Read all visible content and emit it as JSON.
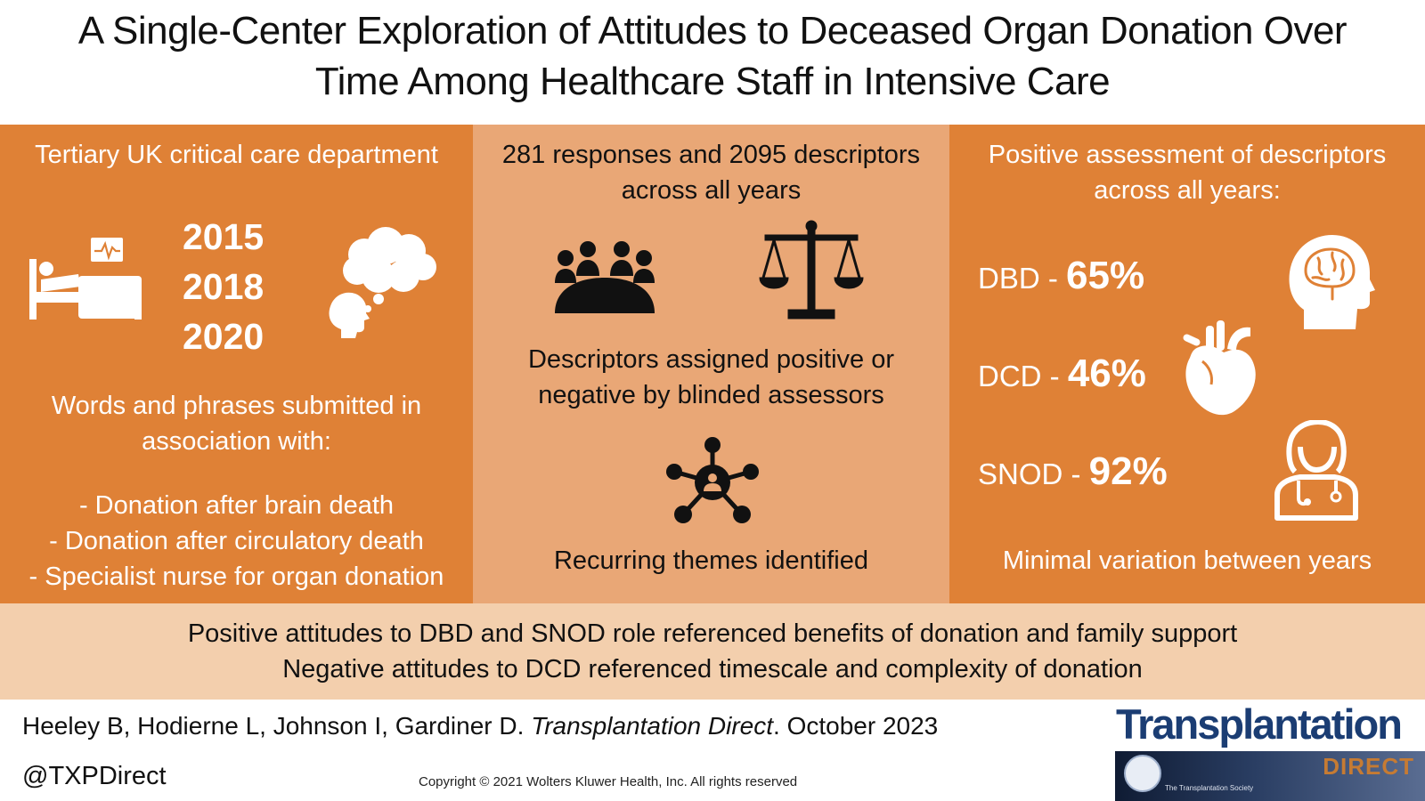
{
  "title": {
    "line1": "A Single-Center Exploration of Attitudes to Deceased Organ Donation Over",
    "line2": "Time Among Healthcare Staff in Intensive Care"
  },
  "panel_left": {
    "heading": "Tertiary UK critical care department",
    "years": [
      "2015",
      "2018",
      "2020"
    ],
    "icons": [
      "hospital-bed-icon",
      "thought-head-icon"
    ],
    "words_intro": [
      "Words and phrases submitted in",
      "association with:"
    ],
    "bullets": [
      "- Donation after brain death",
      "- Donation after circulatory death",
      "- Specialist nurse for organ donation"
    ]
  },
  "panel_middle": {
    "heading": [
      "281 responses and 2095 descriptors",
      "across all years"
    ],
    "icons": [
      "group-meeting-icon",
      "scales-icon",
      "network-icon"
    ],
    "assessors": [
      "Descriptors assigned positive or",
      "negative by blinded assessors"
    ],
    "themes": "Recurring themes identified"
  },
  "panel_right": {
    "heading": [
      "Positive assessment of descriptors",
      "across all years:"
    ],
    "stats": [
      {
        "label": "DBD -",
        "value": "65%",
        "icon": "brain-head-icon"
      },
      {
        "label": "DCD -",
        "value": "46%",
        "icon": "heart-icon"
      },
      {
        "label": "SNOD -",
        "value": "92%",
        "icon": "nurse-icon"
      }
    ],
    "footer": "Minimal variation between years"
  },
  "band": {
    "line1": "Positive attitudes to DBD and SNOD role referenced benefits of donation and family support",
    "line2": "Negative attitudes to DCD referenced timescale and complexity of donation"
  },
  "footer": {
    "authors": "Heeley B, Hodierne L, Johnson I, Gardiner D. ",
    "journal": "Transplantation Direct",
    "date": ". October 2023",
    "handle": "@TXPDirect",
    "copyright": "Copyright © 2021  Wolters Kluwer Health, Inc. All rights reserved",
    "logo_word": "Transplantation",
    "logo_sub": "DIRECT",
    "logo_society": "The Transplantation Society"
  },
  "colors": {
    "dark_orange": "#df8136",
    "light_orange": "#e9a776",
    "band": "#f3cfad",
    "navy": "#1b3d73"
  }
}
